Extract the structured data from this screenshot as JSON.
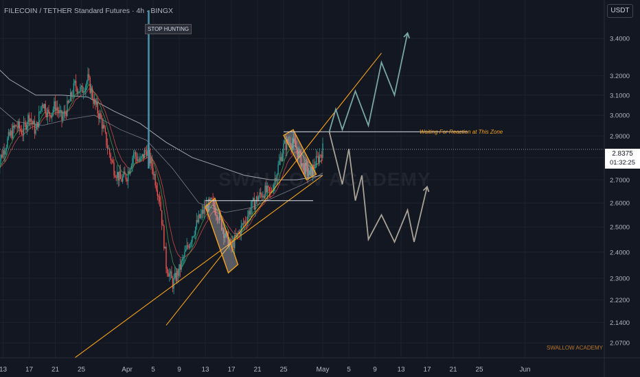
{
  "header": {
    "symbol_title": "FILECOIN / TETHER Standard Futures · 4h · BINGX",
    "currency": "USDT"
  },
  "annotations": {
    "stop_hunting": "STOP HUNTING",
    "zone_label": "Waiting For Reaction at This Zone",
    "brand": "SWALLOW ACADEMY",
    "watermark": "SWALLOW ACADEMY"
  },
  "price_tag": {
    "price": "2.8375",
    "countdown": "01:32:25"
  },
  "colors": {
    "background": "#131722",
    "up_candle": "#26a69a",
    "down_candle": "#ef5350",
    "channel": "#f7a21b",
    "box_fill": "#c7c7c7",
    "bull_projection": "#78a7a4",
    "bear_projection": "#a9a296",
    "ma_slow": "#d1d4dc",
    "ma_mid": "#d1d4dc",
    "ema_fast": "#ef5350",
    "ema_green": "#4caf50",
    "stop_line": "#4a90a4"
  },
  "chart_data": {
    "type": "candlestick",
    "title": "FILECOIN / TETHER Standard Futures · 4h · BINGX",
    "y_scale": "log",
    "ylim": [
      2.02,
      3.62
    ],
    "y_ticks": [
      3.4,
      3.2,
      3.1,
      3.0,
      2.9,
      2.8,
      2.7,
      2.6,
      2.5,
      2.4,
      2.3,
      2.22,
      2.14,
      2.07
    ],
    "y_tick_labels": [
      "3.4000",
      "3.2000",
      "3.1000",
      "3.0000",
      "2.9000",
      "2.8000",
      "2.7000",
      "2.6000",
      "2.5000",
      "2.4000",
      "2.3000",
      "2.2200",
      "2.1400",
      "2.0700"
    ],
    "x_ticks": [
      {
        "label": "13",
        "x": "2024-03-13"
      },
      {
        "label": "17",
        "x": "2024-03-17"
      },
      {
        "label": "21",
        "x": "2024-03-21"
      },
      {
        "label": "25",
        "x": "2024-03-25"
      },
      {
        "label": "Apr",
        "x": "2024-04-01"
      },
      {
        "label": "5",
        "x": "2024-04-05"
      },
      {
        "label": "9",
        "x": "2024-04-09"
      },
      {
        "label": "13",
        "x": "2024-04-13"
      },
      {
        "label": "17",
        "x": "2024-04-17"
      },
      {
        "label": "21",
        "x": "2024-04-21"
      },
      {
        "label": "25",
        "x": "2024-04-25"
      },
      {
        "label": "May",
        "x": "2024-05-01"
      },
      {
        "label": "5",
        "x": "2024-05-05"
      },
      {
        "label": "9",
        "x": "2024-05-09"
      },
      {
        "label": "13",
        "x": "2024-05-13"
      },
      {
        "label": "17",
        "x": "2024-05-17"
      },
      {
        "label": "21",
        "x": "2024-05-21"
      },
      {
        "label": "25",
        "x": "2024-05-25"
      },
      {
        "label": "Jun",
        "x": "2024-06-01"
      }
    ],
    "last_price": 2.8375,
    "price_path": [
      [
        "2024-03-12",
        2.75
      ],
      [
        "2024-03-13",
        2.83
      ],
      [
        "2024-03-14",
        2.9
      ],
      [
        "2024-03-15",
        2.95
      ],
      [
        "2024-03-16",
        2.92
      ],
      [
        "2024-03-17",
        3.0
      ],
      [
        "2024-03-18",
        2.92
      ],
      [
        "2024-03-19",
        3.07
      ],
      [
        "2024-03-20",
        3.0
      ],
      [
        "2024-03-21",
        3.05
      ],
      [
        "2024-03-22",
        2.98
      ],
      [
        "2024-03-23",
        3.05
      ],
      [
        "2024-03-24",
        3.15
      ],
      [
        "2024-03-25",
        3.12
      ],
      [
        "2024-03-26",
        3.18
      ],
      [
        "2024-03-27",
        3.06
      ],
      [
        "2024-03-28",
        2.98
      ],
      [
        "2024-03-29",
        2.85
      ],
      [
        "2024-03-30",
        2.75
      ],
      [
        "2024-03-31",
        2.7
      ],
      [
        "2024-04-01",
        2.72
      ],
      [
        "2024-04-02",
        2.82
      ],
      [
        "2024-04-03",
        2.78
      ],
      [
        "2024-04-04",
        2.84
      ],
      [
        "2024-04-05",
        2.74
      ],
      [
        "2024-04-06",
        2.62
      ],
      [
        "2024-04-07",
        2.35
      ],
      [
        "2024-04-08",
        2.28
      ],
      [
        "2024-04-09",
        2.33
      ],
      [
        "2024-04-10",
        2.4
      ],
      [
        "2024-04-11",
        2.47
      ],
      [
        "2024-04-12",
        2.53
      ],
      [
        "2024-04-13",
        2.58
      ],
      [
        "2024-04-14",
        2.6
      ],
      [
        "2024-04-15",
        2.55
      ],
      [
        "2024-04-16",
        2.47
      ],
      [
        "2024-04-17",
        2.42
      ],
      [
        "2024-04-18",
        2.47
      ],
      [
        "2024-04-19",
        2.52
      ],
      [
        "2024-04-20",
        2.58
      ],
      [
        "2024-04-21",
        2.62
      ],
      [
        "2024-04-22",
        2.65
      ],
      [
        "2024-04-23",
        2.64
      ],
      [
        "2024-04-24",
        2.74
      ],
      [
        "2024-04-25",
        2.85
      ],
      [
        "2024-04-26",
        2.88
      ],
      [
        "2024-04-27",
        2.84
      ],
      [
        "2024-04-28",
        2.76
      ],
      [
        "2024-04-29",
        2.72
      ],
      [
        "2024-04-30",
        2.78
      ],
      [
        "2024-05-01",
        2.84
      ]
    ],
    "moving_average_slow": [
      [
        "2024-03-11",
        3.28
      ],
      [
        "2024-03-14",
        3.18
      ],
      [
        "2024-03-18",
        3.1
      ],
      [
        "2024-03-22",
        3.1
      ],
      [
        "2024-03-26",
        3.09
      ],
      [
        "2024-03-30",
        3.02
      ],
      [
        "2024-04-03",
        2.96
      ],
      [
        "2024-04-07",
        2.87
      ],
      [
        "2024-04-11",
        2.8
      ],
      [
        "2024-04-15",
        2.76
      ],
      [
        "2024-04-19",
        2.72
      ],
      [
        "2024-04-23",
        2.7
      ],
      [
        "2024-04-27",
        2.7
      ],
      [
        "2024-05-01",
        2.72
      ]
    ],
    "moving_average_mid": [
      [
        "2024-03-11",
        3.08
      ],
      [
        "2024-03-15",
        2.97
      ],
      [
        "2024-03-19",
        2.95
      ],
      [
        "2024-03-23",
        2.98
      ],
      [
        "2024-03-27",
        3.0
      ],
      [
        "2024-03-31",
        2.93
      ],
      [
        "2024-04-04",
        2.88
      ],
      [
        "2024-04-08",
        2.75
      ],
      [
        "2024-04-12",
        2.6
      ],
      [
        "2024-04-16",
        2.56
      ],
      [
        "2024-04-20",
        2.58
      ],
      [
        "2024-04-24",
        2.63
      ],
      [
        "2024-04-28",
        2.68
      ],
      [
        "2024-05-01",
        2.73
      ]
    ],
    "channel_upper": [
      [
        "2024-04-07",
        2.13
      ],
      [
        "2024-05-10",
        3.32
      ]
    ],
    "channel_lower": [
      [
        "2024-03-24",
        2.02
      ],
      [
        "2024-05-01",
        2.72
      ]
    ],
    "consolidation_boxes": [
      {
        "start": "2024-04-13",
        "end": "2024-04-18",
        "top": 2.62,
        "bottom": 2.32
      },
      {
        "start": "2024-04-25",
        "end": "2024-04-30",
        "top": 2.93,
        "bottom": 2.7
      }
    ],
    "resistance_zone": {
      "start": "2024-04-25",
      "end": "2024-05-15",
      "price": 2.92
    },
    "support_line": {
      "start": "2024-04-13",
      "end": "2024-05-01",
      "price": 2.61
    },
    "stop_hunting_wick": {
      "date": "2024-04-04",
      "high": 3.56,
      "low": 2.75
    },
    "bullish_projection": [
      [
        "2024-05-02",
        2.92
      ],
      [
        "2024-05-03",
        3.03
      ],
      [
        "2024-05-04",
        2.93
      ],
      [
        "2024-05-06",
        3.12
      ],
      [
        "2024-05-08",
        2.95
      ],
      [
        "2024-05-10",
        3.27
      ],
      [
        "2024-05-12",
        3.1
      ],
      [
        "2024-05-14",
        3.43
      ]
    ],
    "bearish_projection": [
      [
        "2024-05-02",
        2.92
      ],
      [
        "2024-05-04",
        2.68
      ],
      [
        "2024-05-05",
        2.84
      ],
      [
        "2024-05-06",
        2.61
      ],
      [
        "2024-05-07",
        2.72
      ],
      [
        "2024-05-08",
        2.45
      ],
      [
        "2024-05-10",
        2.55
      ],
      [
        "2024-05-12",
        2.44
      ],
      [
        "2024-05-14",
        2.57
      ],
      [
        "2024-05-15",
        2.44
      ],
      [
        "2024-05-17",
        2.67
      ]
    ]
  }
}
